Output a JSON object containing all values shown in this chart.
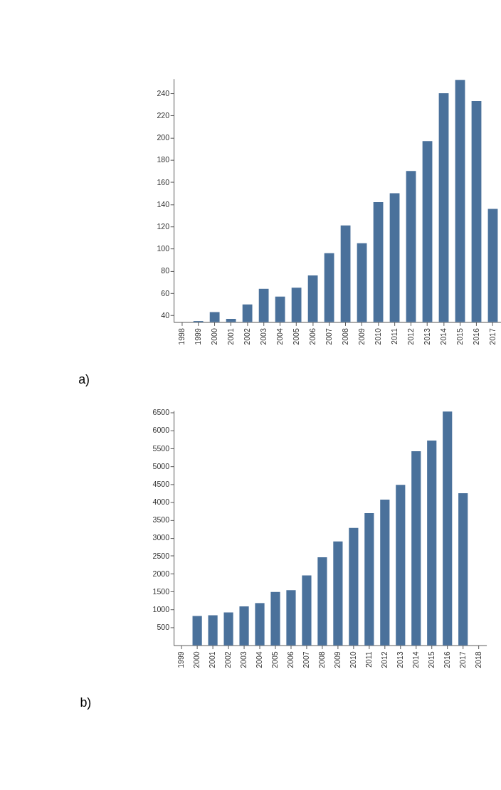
{
  "chart_data": [
    {
      "type": "bar",
      "categories": [
        "1998",
        "1999",
        "2000",
        "2001",
        "2002",
        "2003",
        "2004",
        "2005",
        "2006",
        "2007",
        "2008",
        "2009",
        "2010",
        "2011",
        "2012",
        "2013",
        "2014",
        "2015",
        "2016",
        "2017"
      ],
      "series": [
        {
          "color": "#4a719b",
          "values": [
            null,
            35,
            43,
            37,
            50,
            64,
            57,
            65,
            76,
            96,
            121,
            105,
            142,
            150,
            170,
            197,
            240,
            252,
            233,
            136
          ]
        }
      ],
      "ylim": [
        34,
        253
      ],
      "yticks": [
        40,
        60,
        80,
        100,
        120,
        140,
        160,
        180,
        200,
        220,
        240
      ],
      "annotations": [
        "a)"
      ]
    },
    {
      "type": "bar",
      "categories": [
        "1999",
        "2000",
        "2001",
        "2002",
        "2003",
        "2004",
        "2005",
        "2006",
        "2007",
        "2008",
        "2009",
        "2010",
        "2011",
        "2012",
        "2013",
        "2014",
        "2015",
        "2016",
        "2017",
        "2018"
      ],
      "series": [
        {
          "color": "#4a719b",
          "values": [
            null,
            820,
            840,
            920,
            1090,
            1180,
            1490,
            1540,
            1950,
            2460,
            2900,
            3280,
            3690,
            4070,
            4480,
            5420,
            5720,
            6530,
            4250,
            null
          ]
        }
      ],
      "ylim": [
        0,
        6550
      ],
      "yticks": [
        500,
        1000,
        1500,
        2000,
        2500,
        3000,
        3500,
        4000,
        4500,
        5000,
        5500,
        6000,
        6500
      ],
      "annotations": [
        "b)"
      ]
    }
  ]
}
